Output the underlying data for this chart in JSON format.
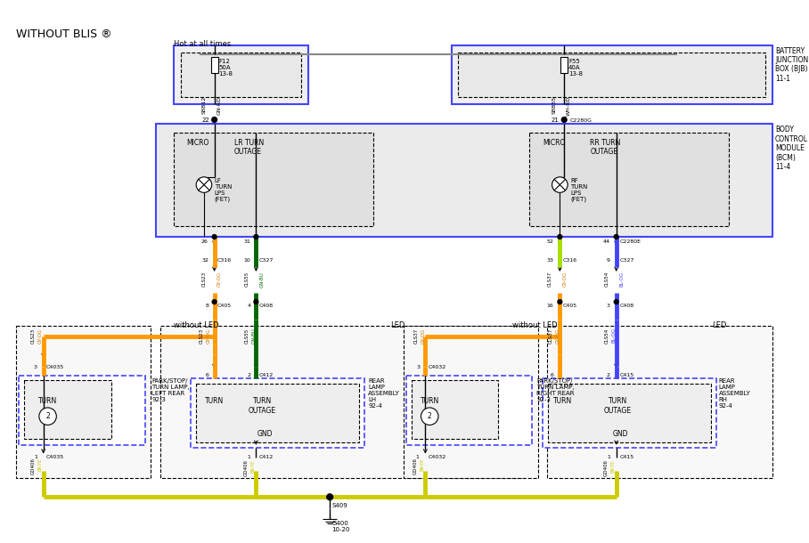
{
  "title": "WITHOUT BLIS ®",
  "background": "#ffffff",
  "fig_width": 9.08,
  "fig_height": 6.1,
  "hot_at_all_times": "Hot at all times",
  "battery_junction_box": "BATTERY\nJUNCTION\nBOX (BJB)\n11-1",
  "body_control_module": "BODY\nCONTROL\nMODULE\n(BCM)\n11-4",
  "fuse_left": {
    "name": "F12",
    "amp": "50A",
    "loc": "13-8"
  },
  "fuse_right": {
    "name": "F55",
    "amp": "40A",
    "loc": "13-8"
  },
  "wire_colors": {
    "GN_RD": "#22aa22",
    "WH_RD": "#ff0000",
    "GY_OG": "#ff9900",
    "GN_BU": "#006600",
    "BK_YE": "#cccc00",
    "black": "#000000"
  }
}
